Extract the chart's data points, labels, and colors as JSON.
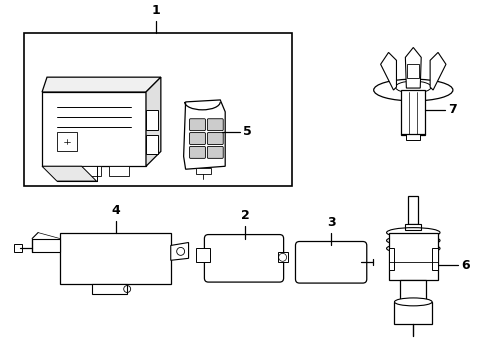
{
  "background_color": "#ffffff",
  "line_color": "#000000",
  "fig_width": 4.9,
  "fig_height": 3.6,
  "dpi": 100
}
